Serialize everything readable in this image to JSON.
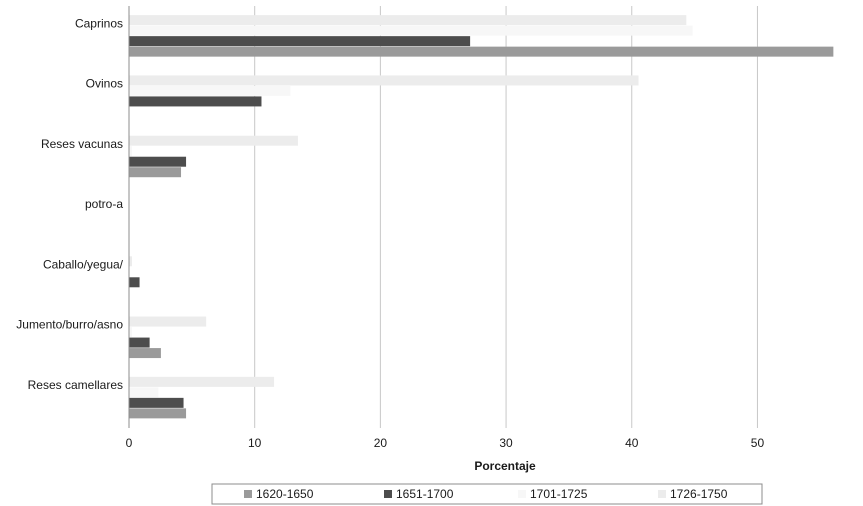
{
  "chart_data": {
    "type": "bar",
    "orientation": "horizontal",
    "title": "",
    "xlabel": "Porcentaje",
    "ylabel": "",
    "xlim": [
      0,
      58
    ],
    "xticks": [
      0,
      10,
      20,
      30,
      40,
      50
    ],
    "grid": "vertical",
    "legend_position": "bottom",
    "categories": [
      "Caprinos",
      "Ovinos",
      "Reses vacunas",
      "potro-a",
      "Caballo/yegua/",
      "Jumento/burro/asno",
      "Reses camellares"
    ],
    "series": [
      {
        "name": "1620-1650",
        "color": "#9a9a9a",
        "values": [
          56,
          0,
          4.1,
          0,
          0,
          2.5,
          4.5
        ]
      },
      {
        "name": "1651-1700",
        "color": "#4d4d4d",
        "values": [
          27.1,
          10.5,
          4.5,
          0,
          0.8,
          1.6,
          4.3
        ]
      },
      {
        "name": "1701-1725",
        "color": "#f7f7f7",
        "values": [
          44.8,
          12.8,
          0.2,
          0,
          0,
          0.2,
          2.3
        ]
      },
      {
        "name": "1726-1750",
        "color": "#ececec",
        "values": [
          44.3,
          40.5,
          13.4,
          0,
          0.2,
          6.1,
          11.5
        ]
      }
    ]
  }
}
